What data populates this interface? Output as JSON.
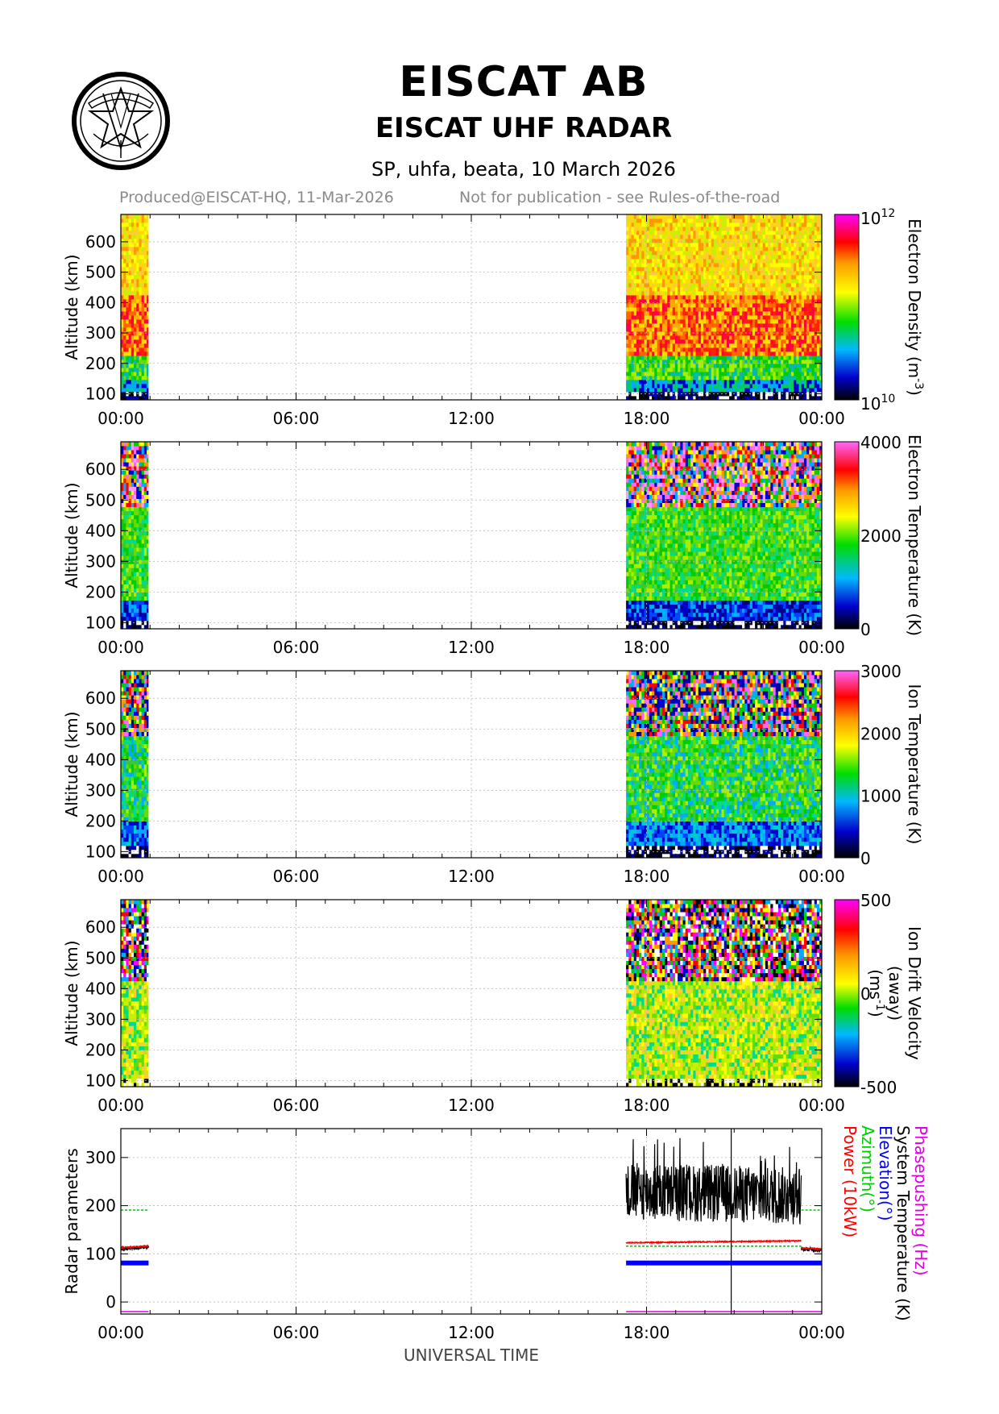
{
  "header": {
    "org_title": "EISCAT AB",
    "radar_title": "EISCAT UHF RADAR",
    "experiment": "SP, uhfa, beata, 10 March 2026",
    "produced": "Produced@EISCAT-HQ, 11-Mar-2026",
    "disclaimer": "Not for publication - see Rules-of-the-road"
  },
  "icons": {
    "logo": "eiscat-logo-icon"
  },
  "colors": {
    "grid": "#b8b8b8",
    "power": "#ff0000",
    "azimuth": "#00cc00",
    "elevation": "#0000ff",
    "system_temperature": "#000000",
    "phasepushing": "#e000e0",
    "subtitle_gray": "#8a8a8a"
  },
  "chart_data": [
    {
      "type": "heatmap",
      "title": "Electron Density",
      "ylabel": "Altitude (km)",
      "xlabel": "",
      "x_ticks": [
        "00:00",
        "06:00",
        "12:00",
        "18:00",
        "00:00"
      ],
      "xlim": [
        0,
        24
      ],
      "y_ticks": [
        100,
        200,
        300,
        400,
        500,
        600
      ],
      "ylim": [
        80,
        690
      ],
      "colorbar_label": "Electron Density (m",
      "colorbar_unit_exp": "-3",
      "colorbar_unit_end": ")",
      "colorbar_ticks": [
        {
          "base": "10",
          "exp": "12"
        },
        {
          "base": "10",
          "exp": "10"
        }
      ],
      "scale": "log",
      "data_intervals_ut": [
        [
          0.0,
          0.95
        ],
        [
          17.3,
          24.0
        ]
      ]
    },
    {
      "type": "heatmap",
      "title": "Electron Temperature",
      "ylabel": "Altitude (km)",
      "xlabel": "",
      "x_ticks": [
        "00:00",
        "06:00",
        "12:00",
        "18:00",
        "00:00"
      ],
      "xlim": [
        0,
        24
      ],
      "y_ticks": [
        100,
        200,
        300,
        400,
        500,
        600
      ],
      "ylim": [
        80,
        690
      ],
      "colorbar_label": "Electron Temperature (K)",
      "colorbar_ticks": [
        "4000",
        "2000",
        "0"
      ],
      "clim": [
        0,
        4000
      ],
      "data_intervals_ut": [
        [
          0.0,
          0.95
        ],
        [
          17.3,
          24.0
        ]
      ]
    },
    {
      "type": "heatmap",
      "title": "Ion Temperature",
      "ylabel": "Altitude (km)",
      "xlabel": "",
      "x_ticks": [
        "00:00",
        "06:00",
        "12:00",
        "18:00",
        "00:00"
      ],
      "xlim": [
        0,
        24
      ],
      "y_ticks": [
        100,
        200,
        300,
        400,
        500,
        600
      ],
      "ylim": [
        80,
        690
      ],
      "colorbar_label": "Ion Temperature (K)",
      "colorbar_ticks": [
        "3000",
        "2000",
        "1000",
        "0"
      ],
      "clim": [
        0,
        3000
      ],
      "data_intervals_ut": [
        [
          0.0,
          0.95
        ],
        [
          17.3,
          24.0
        ]
      ]
    },
    {
      "type": "heatmap",
      "title": "Ion Drift Velocity",
      "ylabel": "Altitude (km)",
      "xlabel": "",
      "x_ticks": [
        "00:00",
        "06:00",
        "12:00",
        "18:00",
        "00:00"
      ],
      "xlim": [
        0,
        24
      ],
      "y_ticks": [
        100,
        200,
        300,
        400,
        500,
        600
      ],
      "ylim": [
        80,
        690
      ],
      "colorbar_label": "Ion Drift Velocity",
      "colorbar_label2": "(away)",
      "colorbar_unit": "(ms",
      "colorbar_unit_exp": "-1",
      "colorbar_unit_end": ")",
      "colorbar_ticks": [
        "500",
        "0",
        "-500"
      ],
      "clim": [
        -500,
        500
      ],
      "data_intervals_ut": [
        [
          0.0,
          0.95
        ],
        [
          17.3,
          24.0
        ]
      ]
    },
    {
      "type": "line",
      "title": "Radar parameters",
      "ylabel": "Radar parameters",
      "xlabel": "UNIVERSAL TIME",
      "x_ticks": [
        "00:00",
        "06:00",
        "12:00",
        "18:00",
        "00:00"
      ],
      "xlim": [
        0,
        24
      ],
      "y_ticks": [
        0,
        100,
        200,
        300
      ],
      "ylim": [
        -25,
        360
      ],
      "legend": [
        "Phasepushing (Hz)",
        "System Temperature (K)",
        "Elevation(°)",
        "Azimuth(°)",
        "Power (10kW)"
      ],
      "series": [
        {
          "name": "System Temperature (K)",
          "segments": [
            {
              "x": [
                0.0,
                0.95
              ],
              "y": [
                110,
                115
              ]
            },
            {
              "x": [
                17.3,
                23.3
              ],
              "y": [
                230,
                220
              ]
            },
            {
              "x": [
                23.3,
                24.0
              ],
              "y": [
                110,
                108
              ]
            }
          ]
        },
        {
          "name": "Power (10kW)",
          "segments": [
            {
              "x": [
                0.0,
                0.95
              ],
              "y": [
                113,
                116
              ]
            },
            {
              "x": [
                17.3,
                23.3
              ],
              "y": [
                123,
                127
              ]
            },
            {
              "x": [
                23.3,
                24.0
              ],
              "y": [
                112,
                110
              ]
            }
          ]
        },
        {
          "name": "Azimuth(°)",
          "segments": [
            {
              "x": [
                0.0,
                0.95
              ],
              "y": [
                191,
                191
              ]
            },
            {
              "x": [
                17.3,
                23.3
              ],
              "y": [
                116,
                116
              ]
            },
            {
              "x": [
                23.3,
                24.0
              ],
              "y": [
                191,
                191
              ]
            }
          ]
        },
        {
          "name": "Elevation(°)",
          "segments": [
            {
              "x": [
                0.0,
                0.95
              ],
              "y": [
                81,
                81
              ]
            },
            {
              "x": [
                17.3,
                24.0
              ],
              "y": [
                81,
                81
              ]
            }
          ]
        },
        {
          "name": "Phasepushing (Hz)",
          "segments": [
            {
              "x": [
                0.0,
                0.95
              ],
              "y": [
                -20,
                -20
              ]
            },
            {
              "x": [
                17.3,
                24.0
              ],
              "y": [
                -20,
                -20
              ]
            }
          ]
        }
      ],
      "spike": {
        "x": 20.9,
        "y_min": -25,
        "y_max": 360
      }
    }
  ]
}
